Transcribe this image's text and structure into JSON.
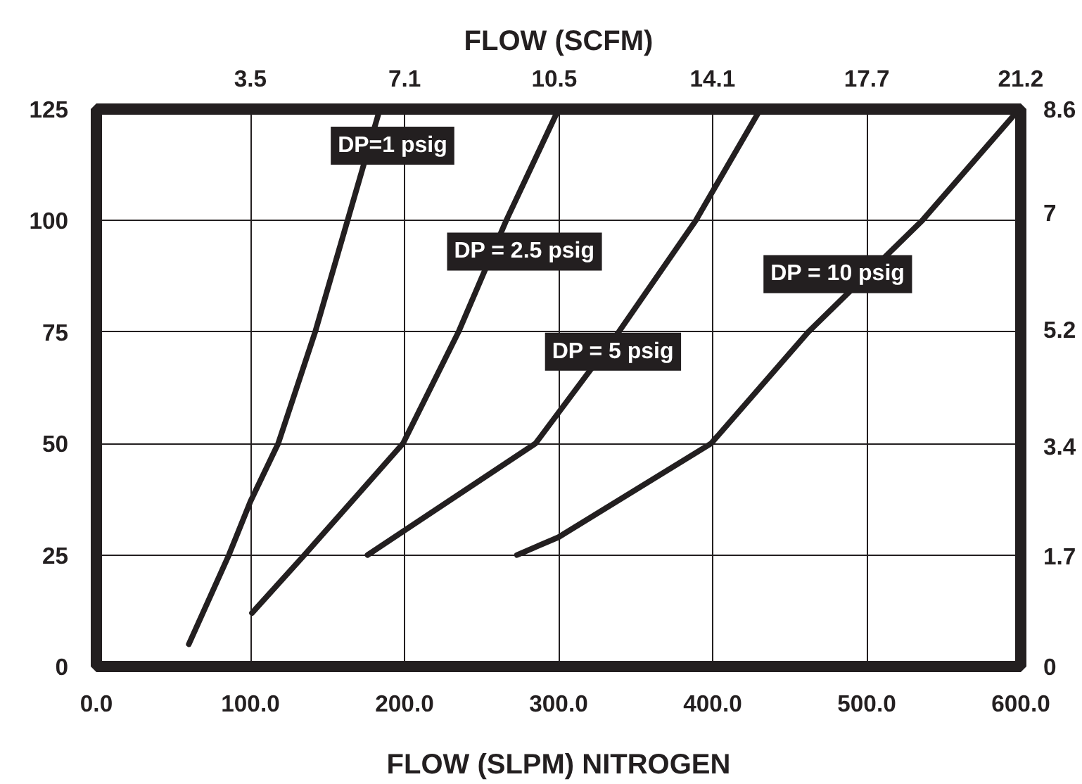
{
  "chart_data": {
    "type": "line",
    "xlabel": "FLOW (SLPM) NITROGEN",
    "x2label": "FLOW (SCFM)",
    "xlim": [
      0,
      600
    ],
    "ylim": [
      0,
      125
    ],
    "xticks": [
      {
        "value": 0,
        "label": "0.0"
      },
      {
        "value": 100,
        "label": "100.0"
      },
      {
        "value": 200,
        "label": "200.0"
      },
      {
        "value": 300,
        "label": "300.0"
      },
      {
        "value": 400,
        "label": "400.0"
      },
      {
        "value": 500,
        "label": "500.0"
      },
      {
        "value": 600,
        "label": "600.0"
      }
    ],
    "yticks": [
      0,
      25,
      50,
      75,
      100,
      125
    ],
    "x2lim": [
      0,
      21.2
    ],
    "x2ticks": [
      {
        "value": 3.53,
        "label": "3.5"
      },
      {
        "value": 7.07,
        "label": "7.1"
      },
      10.5,
      {
        "value": 14.13,
        "label": "14.1"
      },
      {
        "value": 17.67,
        "label": "17.7"
      },
      21.2
    ],
    "y2lim": [
      0,
      8.6
    ],
    "y2ticks": [
      0,
      1.7,
      3.4,
      5.2,
      7,
      8.6
    ],
    "grid": true,
    "line_style": "solid",
    "series": [
      {
        "name": "DP=1 psig",
        "color": "#231f20",
        "x": [
          60,
          86,
          100,
          118,
          142,
          163,
          184
        ],
        "values": [
          5,
          25,
          37,
          50,
          75,
          100,
          125
        ]
      },
      {
        "name": "DP = 2.5 psig",
        "color": "#231f20",
        "x": [
          101,
          135,
          199,
          235,
          266,
          300
        ],
        "values": [
          12,
          25,
          50,
          75,
          100,
          125
        ]
      },
      {
        "name": "DP = 5 psig",
        "color": "#231f20",
        "x": [
          176,
          285,
          339,
          389,
          431
        ],
        "values": [
          25,
          50,
          75,
          100,
          125
        ]
      },
      {
        "name": "DP = 10 psig",
        "color": "#231f20",
        "x": [
          273,
          300,
          399,
          462,
          536,
          599
        ],
        "values": [
          25,
          29,
          50,
          75,
          100,
          125
        ]
      }
    ]
  }
}
